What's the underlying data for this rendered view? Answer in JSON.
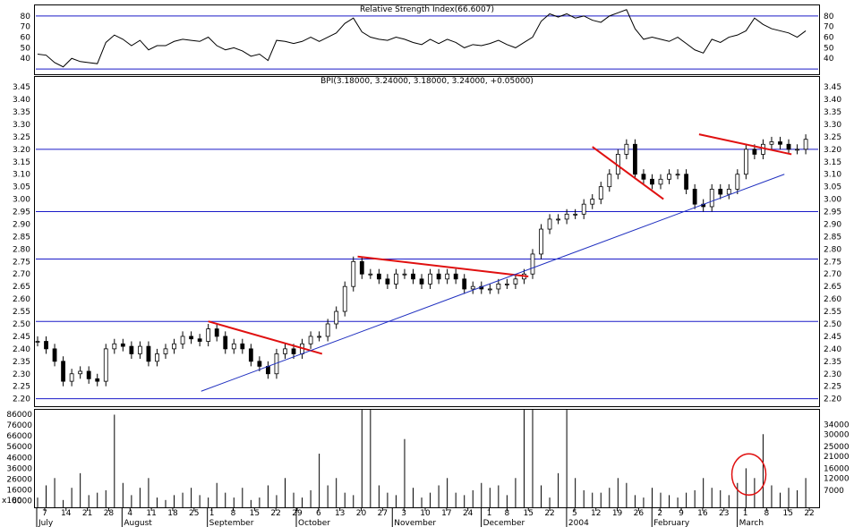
{
  "chart_data": [
    {
      "panel": "rsi",
      "type": "line",
      "title": "Relative Strength Index(66.6007)",
      "yticks": [
        40,
        50,
        60,
        70,
        80
      ],
      "ylim": [
        25,
        90
      ],
      "reference_lines": [
        30,
        80
      ],
      "x_index": [
        0,
        2,
        4,
        6,
        8,
        10,
        12,
        14,
        16,
        18,
        20,
        22,
        24,
        26,
        28,
        30,
        32,
        34,
        36,
        38,
        40,
        42,
        44,
        46,
        48,
        50,
        52,
        54,
        56,
        58,
        60,
        62,
        64,
        66,
        68,
        70,
        72,
        74,
        76,
        78,
        80,
        82,
        84,
        86,
        88,
        90,
        92,
        94,
        96,
        98,
        100,
        102,
        104,
        106,
        108,
        110,
        112,
        114,
        116,
        118,
        120,
        122,
        124,
        126,
        128,
        130,
        132,
        134,
        136,
        138,
        140,
        142,
        144,
        146,
        148,
        150,
        152,
        154,
        156,
        158,
        160,
        162,
        164,
        166,
        168,
        170,
        172,
        174,
        176,
        178,
        180
      ],
      "values": [
        44,
        43,
        36,
        32,
        40,
        37,
        36,
        35,
        55,
        62,
        58,
        52,
        57,
        48,
        52,
        52,
        56,
        58,
        57,
        56,
        60,
        52,
        48,
        50,
        47,
        42,
        44,
        38,
        57,
        56,
        54,
        56,
        60,
        56,
        60,
        64,
        73,
        78,
        65,
        60,
        58,
        57,
        60,
        58,
        55,
        53,
        58,
        54,
        58,
        55,
        50,
        53,
        52,
        54,
        57,
        53,
        50,
        55,
        60,
        75,
        82,
        79,
        82,
        78,
        80,
        76,
        74,
        80,
        83,
        86,
        68,
        58,
        60,
        58,
        56,
        60,
        54,
        48,
        45,
        58,
        55,
        60,
        62,
        66,
        78,
        72,
        68,
        66,
        64,
        60,
        66
      ]
    },
    {
      "panel": "price",
      "type": "candlestick",
      "title": "BPI(3.18000, 3.24000, 3.18000, 3.24000, +0.05000)",
      "yticks": [
        2.2,
        2.25,
        2.3,
        2.35,
        2.4,
        2.45,
        2.5,
        2.55,
        2.6,
        2.65,
        2.7,
        2.75,
        2.8,
        2.85,
        2.9,
        2.95,
        3.0,
        3.05,
        3.1,
        3.15,
        3.2,
        3.25,
        3.3,
        3.35,
        3.4,
        3.45
      ],
      "ytick_labels": [
        "2.20",
        "2.25",
        "2.30",
        "2.35",
        "2.40",
        "2.45",
        "2.50",
        "2.55",
        "2.60",
        "2.65",
        "2.70",
        "2.75",
        "2.80",
        "2.85",
        "2.90",
        "2.95",
        "3.00",
        "3.05",
        "3.10",
        "3.15",
        "3.20",
        "3.25",
        "3.30",
        "3.35",
        "3.40",
        "3.45"
      ],
      "ylim": [
        2.17,
        3.49
      ],
      "x_index": [
        0,
        2,
        4,
        6,
        8,
        10,
        12,
        14,
        16,
        18,
        20,
        22,
        24,
        26,
        28,
        30,
        32,
        34,
        36,
        38,
        40,
        42,
        44,
        46,
        48,
        50,
        52,
        54,
        56,
        58,
        60,
        62,
        64,
        66,
        68,
        70,
        72,
        74,
        76,
        78,
        80,
        82,
        84,
        86,
        88,
        90,
        92,
        94,
        96,
        98,
        100,
        102,
        104,
        106,
        108,
        110,
        112,
        114,
        116,
        118,
        120,
        122,
        124,
        126,
        128,
        130,
        132,
        134,
        136,
        138,
        140,
        142,
        144,
        146,
        148,
        150,
        152,
        154,
        156,
        158,
        160,
        162,
        164,
        166,
        168,
        170,
        172,
        174,
        176,
        178,
        180
      ],
      "close": [
        2.43,
        2.4,
        2.35,
        2.27,
        2.3,
        2.31,
        2.28,
        2.27,
        2.4,
        2.42,
        2.41,
        2.38,
        2.41,
        2.35,
        2.38,
        2.4,
        2.42,
        2.45,
        2.44,
        2.43,
        2.48,
        2.45,
        2.4,
        2.42,
        2.4,
        2.35,
        2.33,
        2.3,
        2.38,
        2.4,
        2.38,
        2.42,
        2.45,
        2.45,
        2.5,
        2.55,
        2.65,
        2.75,
        2.7,
        2.7,
        2.68,
        2.66,
        2.7,
        2.7,
        2.68,
        2.66,
        2.7,
        2.68,
        2.7,
        2.68,
        2.64,
        2.65,
        2.64,
        2.64,
        2.66,
        2.66,
        2.68,
        2.7,
        2.78,
        2.88,
        2.92,
        2.92,
        2.94,
        2.94,
        2.98,
        3.0,
        3.05,
        3.1,
        3.18,
        3.22,
        3.1,
        3.08,
        3.06,
        3.08,
        3.1,
        3.1,
        3.04,
        2.98,
        2.97,
        3.04,
        3.02,
        3.04,
        3.1,
        3.2,
        3.18,
        3.22,
        3.23,
        3.22,
        3.2,
        3.2,
        3.24
      ],
      "trendlines_red": [
        {
          "x": [
            48,
            80
          ],
          "y": [
            2.51,
            2.38
          ]
        },
        {
          "x": [
            90,
            138
          ],
          "y": [
            2.77,
            2.69
          ]
        },
        {
          "x": [
            156,
            176
          ],
          "y": [
            3.21,
            3.0
          ]
        },
        {
          "x": [
            186,
            212
          ],
          "y": [
            3.26,
            3.18
          ]
        }
      ],
      "trendline_support": {
        "x": [
          46,
          210
        ],
        "y": [
          2.23,
          3.1
        ]
      },
      "horizontal_levels": [
        2.2,
        2.51,
        2.76,
        2.95,
        3.2
      ]
    },
    {
      "panel": "volume",
      "type": "bar",
      "yticks": [
        7000,
        12000,
        16000,
        21000,
        25000,
        30000,
        34000
      ],
      "yticks_left": [
        6000,
        16000,
        26000,
        36000,
        46000,
        56000,
        66000,
        76000,
        86000
      ],
      "unit_label": "x100",
      "ylim": [
        0,
        40000
      ],
      "x_index": [
        0,
        2,
        4,
        6,
        8,
        10,
        12,
        14,
        16,
        18,
        20,
        22,
        24,
        26,
        28,
        30,
        32,
        34,
        36,
        38,
        40,
        42,
        44,
        46,
        48,
        50,
        52,
        54,
        56,
        58,
        60,
        62,
        64,
        66,
        68,
        70,
        72,
        74,
        76,
        78,
        80,
        82,
        84,
        86,
        88,
        90,
        92,
        94,
        96,
        98,
        100,
        102,
        104,
        106,
        108,
        110,
        112,
        114,
        116,
        118,
        120,
        122,
        124,
        126,
        128,
        130,
        132,
        134,
        136,
        138,
        140,
        142,
        144,
        146,
        148,
        150,
        152,
        154,
        156,
        158,
        160,
        162,
        164,
        166,
        168,
        170,
        172,
        174,
        176,
        178,
        180
      ],
      "values": [
        4000,
        9000,
        12000,
        3000,
        8000,
        14000,
        5000,
        6000,
        7000,
        38000,
        10000,
        5000,
        8000,
        12000,
        4000,
        3000,
        5000,
        6000,
        8000,
        5000,
        4000,
        10000,
        6000,
        4000,
        8000,
        3000,
        4000,
        9000,
        5000,
        12000,
        6000,
        4000,
        7000,
        22000,
        9000,
        12000,
        6000,
        5000,
        40000,
        40000,
        9000,
        6000,
        5000,
        28000,
        8000,
        4000,
        6000,
        9000,
        12000,
        6000,
        5000,
        7000,
        10000,
        8000,
        9000,
        5000,
        12000,
        40000,
        40000,
        9000,
        4000,
        14000,
        40000,
        12000,
        7000,
        6000,
        6000,
        8000,
        12000,
        10000,
        5000,
        4000,
        8000,
        6000,
        5000,
        4000,
        6000,
        7000,
        12000,
        8000,
        7000,
        5000,
        10000,
        16000,
        12000,
        30000,
        9000,
        6000,
        8000,
        7000,
        12000
      ],
      "annotation": "circle",
      "annotation_x_index": 200,
      "annotation_value": 12000
    }
  ],
  "x_axis": {
    "day_labels": [
      {
        "label": "7",
        "i": 2
      },
      {
        "label": "14",
        "i": 8
      },
      {
        "label": "21",
        "i": 14
      },
      {
        "label": "28",
        "i": 20
      },
      {
        "label": "4",
        "i": 26
      },
      {
        "label": "11",
        "i": 32
      },
      {
        "label": "18",
        "i": 38
      },
      {
        "label": "25",
        "i": 44
      },
      {
        "label": "1",
        "i": 49
      },
      {
        "label": "8",
        "i": 55
      },
      {
        "label": "15",
        "i": 61
      },
      {
        "label": "22",
        "i": 67
      },
      {
        "label": "29",
        "i": 73
      },
      {
        "label": "6",
        "i": 79
      },
      {
        "label": "13",
        "i": 85
      },
      {
        "label": "20",
        "i": 91
      },
      {
        "label": "27",
        "i": 97
      },
      {
        "label": "3",
        "i": 103
      },
      {
        "label": "10",
        "i": 109
      },
      {
        "label": "17",
        "i": 115
      },
      {
        "label": "24",
        "i": 121
      },
      {
        "label": "1",
        "i": 127
      },
      {
        "label": "8",
        "i": 132
      },
      {
        "label": "15",
        "i": 138
      },
      {
        "label": "22",
        "i": 144
      },
      {
        "label": "5",
        "i": 151
      },
      {
        "label": "12",
        "i": 157
      },
      {
        "label": "19",
        "i": 163
      },
      {
        "label": "26",
        "i": 169
      },
      {
        "label": "2",
        "i": 175
      },
      {
        "label": "9",
        "i": 181
      },
      {
        "label": "16",
        "i": 187
      },
      {
        "label": "23",
        "i": 193
      },
      {
        "label": "1",
        "i": 199
      },
      {
        "label": "8",
        "i": 205
      },
      {
        "label": "15",
        "i": 211
      },
      {
        "label": "22",
        "i": 217
      }
    ],
    "month_labels": [
      {
        "label": "July",
        "i": 0
      },
      {
        "label": "August",
        "i": 24
      },
      {
        "label": "September",
        "i": 48
      },
      {
        "label": "October",
        "i": 73
      },
      {
        "label": "November",
        "i": 100
      },
      {
        "label": "December",
        "i": 125
      },
      {
        "label": "2004",
        "i": 149
      },
      {
        "label": "February",
        "i": 173
      },
      {
        "label": "March",
        "i": 197
      }
    ]
  },
  "colors": {
    "candle_up": "#ffffff",
    "candle_down": "#000000",
    "trend_red": "#e01010",
    "support_blue": "#2030c0",
    "grid_blue": "#1a1ac8",
    "annotation_red": "#e01010"
  }
}
